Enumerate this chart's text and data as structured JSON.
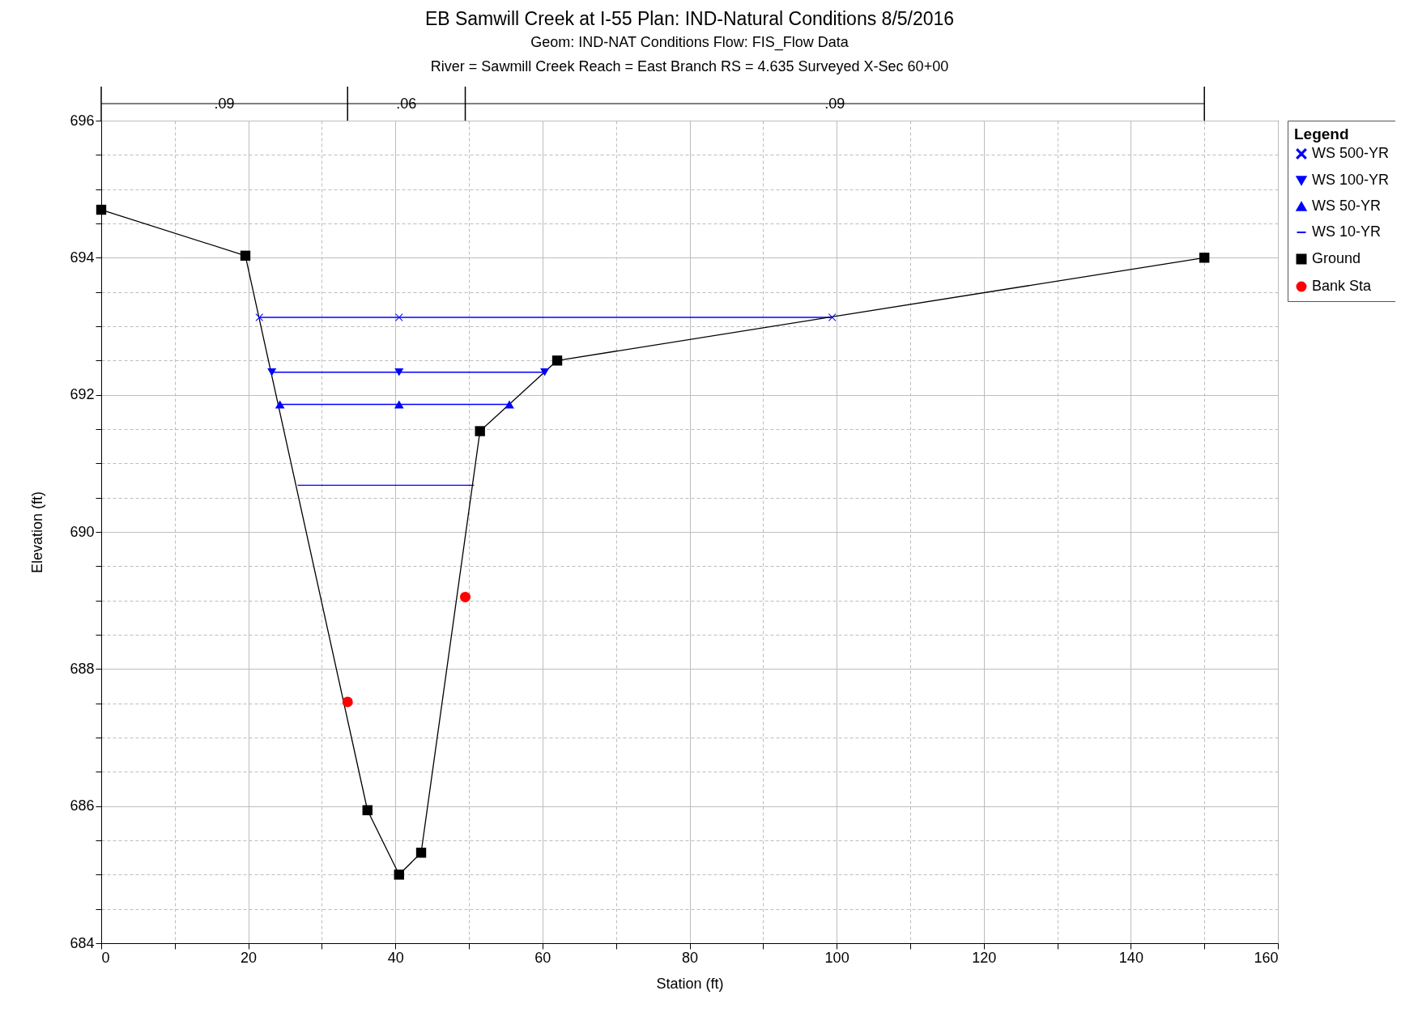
{
  "chart_data": {
    "type": "line",
    "title": "EB Samwill Creek at I-55       Plan: IND-Natural Conditions     8/5/2016",
    "subtitle": "Geom: IND-NAT Conditions     Flow: FIS_Flow Data\nRiver = Sawmill Creek   Reach = East Branch      RS = 4.635    Surveyed X-Sec 60+00",
    "xlabel": "Station (ft)",
    "ylabel": "Elevation (ft)",
    "legend_title": "Legend",
    "legend": "top right",
    "grid": true,
    "xlim": [
      0,
      160
    ],
    "ylim": [
      684,
      696
    ],
    "xticks": [
      0,
      {
        "value": 10,
        "label": null
      },
      20,
      {
        "value": 30,
        "label": null
      },
      40,
      {
        "value": 50,
        "label": null
      },
      60,
      {
        "value": 70,
        "label": null
      },
      80,
      {
        "value": 90,
        "label": null
      },
      100,
      {
        "value": 110,
        "label": null
      },
      120,
      {
        "value": 130,
        "label": null
      },
      140,
      {
        "value": 150,
        "label": null
      },
      160
    ],
    "yticks": [
      684,
      {
        "value": 684.5,
        "label": null
      },
      {
        "value": 685,
        "label": null
      },
      {
        "value": 685.5,
        "label": null
      },
      686,
      {
        "value": 686.5,
        "label": null
      },
      {
        "value": 687,
        "label": null
      },
      {
        "value": 687.5,
        "label": null
      },
      688,
      {
        "value": 688.5,
        "label": null
      },
      {
        "value": 689,
        "label": null
      },
      {
        "value": 689.5,
        "label": null
      },
      690,
      {
        "value": 690.5,
        "label": null
      },
      {
        "value": 691,
        "label": null
      },
      {
        "value": 691.5,
        "label": null
      },
      692,
      {
        "value": 692.5,
        "label": null
      },
      {
        "value": 693,
        "label": null
      },
      {
        "value": 693.5,
        "label": null
      },
      694,
      {
        "value": 694.5,
        "label": null
      },
      {
        "value": 695,
        "label": null
      },
      {
        "value": 695.5,
        "label": null
      },
      696
    ],
    "annotations": [
      ".09",
      ".06",
      ".09"
    ],
    "series": [
      {
        "name": "WS 500-YR",
        "color": "#0000ff",
        "marker": "cross",
        "x": [
          21.5,
          40.5,
          99.4
        ],
        "values": [
          693.13,
          693.13,
          693.13
        ]
      },
      {
        "name": "WS 100-YR",
        "color": "#0000ff",
        "marker": "triangle-down",
        "x": [
          23.2,
          40.5,
          60.3
        ],
        "values": [
          692.33,
          692.33,
          692.33
        ]
      },
      {
        "name": "WS 50-YR",
        "color": "#0000ff",
        "marker": "triangle",
        "x": [
          24.3,
          40.5,
          55.5
        ],
        "values": [
          691.86,
          691.86,
          691.86
        ]
      },
      {
        "name": "WS 10-YR",
        "color": "#0000ff",
        "marker": "none",
        "x": [
          26.7,
          50.7
        ],
        "values": [
          690.68,
          690.68
        ]
      },
      {
        "name": "Ground",
        "color": "#000000",
        "marker": "square",
        "x": [
          0,
          19.6,
          36.2,
          40.5,
          43.5,
          51.5,
          62.0,
          150
        ],
        "values": [
          694.7,
          694.03,
          685.94,
          685.0,
          685.32,
          691.47,
          692.5,
          694.0
        ]
      },
      {
        "name": "Bank Sta",
        "type": "scatter",
        "color": "#ff0000",
        "marker": "circle",
        "x": [
          33.5,
          49.5
        ],
        "values": [
          687.52,
          689.05
        ]
      }
    ]
  }
}
